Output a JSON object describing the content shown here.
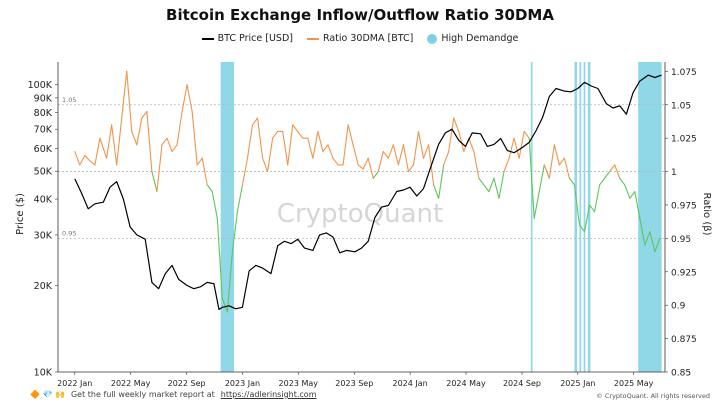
{
  "chart_data": {
    "type": "line",
    "title": "Bitcoin Exchange Inflow/Outflow Ratio 30DMA",
    "xlabel": "",
    "ylabel": "Price ($)",
    "ylabel_right": "Ratio (β)",
    "x_ticks": [
      "2022 Jan",
      "2022 May",
      "2022 Sep",
      "2023 Jan",
      "2023 May",
      "2023 Sep",
      "2024 Jan",
      "2024 May",
      "2024 Sep",
      "2025 Jan",
      "2025 May"
    ],
    "y_left_ticks": [
      "100K",
      "90K",
      "80K",
      "70K",
      "60K",
      "50K",
      "40K",
      "30K",
      "20K",
      "10K"
    ],
    "y_left_tick_values": [
      100000,
      90000,
      80000,
      70000,
      60000,
      50000,
      40000,
      30000,
      20000,
      10000
    ],
    "y_left_scale": "log",
    "y_left_range": [
      10000,
      120000
    ],
    "y_right_ticks": [
      "1.075",
      "1.05",
      "1.025",
      "1",
      "0.975",
      "0.95",
      "0.925",
      "0.9",
      "0.875",
      "0.85"
    ],
    "y_right_tick_values": [
      1.075,
      1.05,
      1.025,
      1.0,
      0.975,
      0.95,
      0.925,
      0.9,
      0.875,
      0.85
    ],
    "y_right_range": [
      0.85,
      1.082
    ],
    "reference_lines": [
      {
        "label": "1.05",
        "value": 1.05
      },
      {
        "label": "0.95",
        "value": 0.95
      },
      {
        "label": "",
        "value": 1.0
      }
    ],
    "watermark": "CryptoQuant",
    "legend_position": "top-center",
    "series": [
      {
        "name": "BTC Price [USD]",
        "axis": "left",
        "color": "#000000",
        "x": [
          2022.0,
          2022.04,
          2022.08,
          2022.12,
          2022.17,
          2022.21,
          2022.25,
          2022.29,
          2022.33,
          2022.37,
          2022.42,
          2022.46,
          2022.5,
          2022.54,
          2022.58,
          2022.62,
          2022.67,
          2022.71,
          2022.75,
          2022.79,
          2022.83,
          2022.86,
          2022.88,
          2022.92,
          2022.96,
          2023.0,
          2023.04,
          2023.08,
          2023.12,
          2023.17,
          2023.21,
          2023.25,
          2023.29,
          2023.33,
          2023.37,
          2023.42,
          2023.46,
          2023.5,
          2023.54,
          2023.58,
          2023.62,
          2023.67,
          2023.71,
          2023.75,
          2023.79,
          2023.83,
          2023.87,
          2023.92,
          2023.96,
          2024.0,
          2024.04,
          2024.08,
          2024.12,
          2024.17,
          2024.21,
          2024.25,
          2024.29,
          2024.33,
          2024.37,
          2024.42,
          2024.46,
          2024.5,
          2024.54,
          2024.58,
          2024.62,
          2024.67,
          2024.71,
          2024.75,
          2024.79,
          2024.83,
          2024.87,
          2024.92,
          2024.96,
          2025.0,
          2025.04,
          2025.08,
          2025.12,
          2025.17,
          2025.21,
          2025.25,
          2025.29,
          2025.33,
          2025.37,
          2025.42,
          2025.46,
          2025.5
        ],
        "values": [
          47000,
          42000,
          37000,
          38500,
          39000,
          44000,
          46000,
          40000,
          32000,
          30000,
          29000,
          20500,
          19500,
          22000,
          23500,
          21000,
          20000,
          19500,
          19800,
          20500,
          20300,
          16500,
          16800,
          17000,
          16600,
          16800,
          22500,
          23500,
          23000,
          22000,
          27500,
          28500,
          28000,
          29000,
          27000,
          26500,
          30000,
          30500,
          29500,
          26000,
          26500,
          26200,
          27000,
          28500,
          34500,
          37500,
          38000,
          42500,
          43000,
          44000,
          41000,
          43500,
          51000,
          62000,
          68000,
          70000,
          64000,
          61000,
          68000,
          67500,
          61000,
          62000,
          65000,
          59000,
          58000,
          60500,
          63000,
          69000,
          77000,
          91000,
          97000,
          95000,
          94500,
          97000,
          102000,
          99000,
          97000,
          86000,
          83000,
          84500,
          79000,
          94000,
          103000,
          108000,
          106000,
          108000
        ]
      },
      {
        "name": "Ratio 30DMA [BTC]",
        "axis": "right",
        "color": "#f0944a",
        "color_below_1": "#5cc75a",
        "x": [
          2022.0,
          2022.03,
          2022.06,
          2022.09,
          2022.12,
          2022.15,
          2022.19,
          2022.22,
          2022.25,
          2022.28,
          2022.31,
          2022.34,
          2022.37,
          2022.4,
          2022.43,
          2022.46,
          2022.49,
          2022.52,
          2022.55,
          2022.58,
          2022.61,
          2022.64,
          2022.67,
          2022.7,
          2022.73,
          2022.76,
          2022.79,
          2022.82,
          2022.85,
          2022.88,
          2022.91,
          2022.94,
          2022.97,
          2023.0,
          2023.03,
          2023.06,
          2023.09,
          2023.12,
          2023.15,
          2023.18,
          2023.21,
          2023.24,
          2023.27,
          2023.3,
          2023.33,
          2023.36,
          2023.39,
          2023.42,
          2023.45,
          2023.48,
          2023.51,
          2023.54,
          2023.57,
          2023.6,
          2023.63,
          2023.66,
          2023.69,
          2023.72,
          2023.75,
          2023.78,
          2023.81,
          2023.84,
          2023.87,
          2023.9,
          2023.93,
          2023.96,
          2023.99,
          2024.02,
          2024.05,
          2024.08,
          2024.11,
          2024.14,
          2024.17,
          2024.2,
          2024.23,
          2024.26,
          2024.29,
          2024.32,
          2024.35,
          2024.38,
          2024.41,
          2024.44,
          2024.47,
          2024.5,
          2024.53,
          2024.56,
          2024.59,
          2024.62,
          2024.65,
          2024.68,
          2024.71,
          2024.74,
          2024.77,
          2024.8,
          2024.83,
          2024.86,
          2024.89,
          2024.92,
          2024.95,
          2024.98,
          2025.01,
          2025.04,
          2025.07,
          2025.1,
          2025.13,
          2025.16,
          2025.19,
          2025.22,
          2025.25,
          2025.28,
          2025.31,
          2025.34,
          2025.37,
          2025.4,
          2025.43,
          2025.46,
          2025.49
        ],
        "values": [
          1.015,
          1.005,
          1.012,
          1.008,
          1.005,
          1.025,
          1.01,
          1.035,
          1.005,
          1.04,
          1.075,
          1.03,
          1.02,
          1.04,
          1.045,
          1.0,
          0.985,
          1.02,
          1.025,
          1.015,
          1.02,
          1.045,
          1.065,
          1.045,
          1.005,
          1.01,
          0.99,
          0.985,
          0.965,
          0.905,
          0.895,
          0.94,
          0.97,
          0.99,
          1.01,
          1.035,
          1.04,
          1.01,
          1.0,
          1.025,
          1.03,
          1.03,
          1.005,
          1.035,
          1.03,
          1.025,
          1.025,
          1.01,
          1.03,
          1.015,
          1.02,
          1.01,
          1.005,
          1.005,
          1.035,
          1.02,
          1.005,
          1.002,
          1.01,
          0.995,
          1.0,
          1.015,
          1.01,
          1.02,
          1.005,
          1.02,
          1.0,
          1.005,
          1.03,
          1.01,
          1.02,
          0.99,
          0.98,
          1.005,
          1.015,
          1.04,
          1.03,
          1.015,
          1.025,
          1.015,
          0.995,
          0.99,
          0.985,
          0.995,
          0.98,
          1.0,
          1.01,
          1.025,
          1.01,
          1.03,
          1.025,
          0.965,
          0.985,
          1.005,
          0.995,
          1.02,
          1.005,
          1.01,
          0.995,
          0.99,
          0.96,
          0.955,
          0.975,
          0.97,
          0.99,
          0.995,
          1.0,
          1.005,
          0.995,
          0.99,
          0.98,
          0.985,
          0.965,
          0.945,
          0.955,
          0.94,
          0.95
        ]
      }
    ],
    "highlight": {
      "name": "High Demandge",
      "color": "#7cd0e4",
      "ranges": [
        [
          2022.87,
          2022.95
        ],
        [
          2024.72,
          2024.73
        ],
        [
          2024.98,
          2024.995
        ],
        [
          2025.01,
          2025.02
        ],
        [
          2025.035,
          2025.045
        ],
        [
          2025.06,
          2025.075
        ],
        [
          2025.36,
          2025.5
        ]
      ]
    }
  },
  "footer": {
    "icons": "🔶 💎 🙌",
    "text": "Get the full weekly market report at",
    "link": "https://adlerinsight.com"
  },
  "copyright": "© CryptoQuant. All rights reserved"
}
